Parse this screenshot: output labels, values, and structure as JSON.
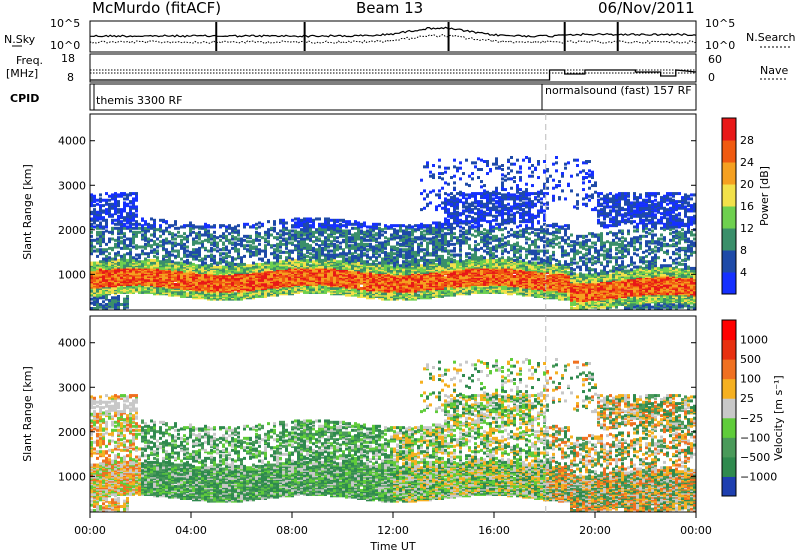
{
  "header": {
    "station": "McMurdo (fitACF)",
    "beam": "Beam 13",
    "date": "06/Nov/2011"
  },
  "top_panel": {
    "left_label": "N.Sky",
    "right_label": "N.Search",
    "left_ticks": [
      "10^5",
      "10^0"
    ],
    "right_ticks": [
      "10^5",
      "10^0"
    ]
  },
  "freq_panel": {
    "left_label_1": "Freq.",
    "left_label_2": "[MHz]",
    "left_ticks": [
      "18",
      "8"
    ],
    "right_label": "Nave",
    "right_ticks": [
      "60",
      "0"
    ]
  },
  "cpid_panel": {
    "label": "CPID",
    "mode_1": "themis 3300 RF",
    "mode_2": "normalsound (fast) 157 RF"
  },
  "chart_data": [
    {
      "type": "heatmap",
      "name": "power",
      "ylabel": "Slant Range [km]",
      "yticks": [
        1000,
        2000,
        3000,
        4000
      ],
      "ylim": [
        200,
        4600
      ],
      "xlim_hours": [
        0,
        24
      ],
      "colorbar": {
        "label": "Power [dB]",
        "ticks": [
          "4",
          "8",
          "12",
          "16",
          "20",
          "24",
          "28"
        ],
        "colors": [
          "#1530ff",
          "#1e4aa8",
          "#3a8f6a",
          "#6ed04f",
          "#f2e14a",
          "#f5a020",
          "#f05a10",
          "#e81818"
        ]
      }
    },
    {
      "type": "heatmap",
      "name": "velocity",
      "ylabel": "Slant Range [km]",
      "yticks": [
        1000,
        2000,
        3000,
        4000
      ],
      "ylim": [
        200,
        4600
      ],
      "xlim_hours": [
        0,
        24
      ],
      "colorbar": {
        "label": "Velocity [m s⁻¹]",
        "ticks": [
          "1000",
          "500",
          "100",
          "25",
          "−25",
          "−100",
          "−500",
          "−1000"
        ],
        "colors": [
          "#1e3fb0",
          "#2f8a4e",
          "#4a9a5a",
          "#5fcc3a",
          "#c8c8c8",
          "#f5b020",
          "#f07020",
          "#e83010",
          "#ff0000"
        ]
      }
    }
  ],
  "x_axis": {
    "ticks": [
      "00:00",
      "04:00",
      "08:00",
      "12:00",
      "16:00",
      "20:00",
      "00:00"
    ],
    "label": "Time UT"
  }
}
